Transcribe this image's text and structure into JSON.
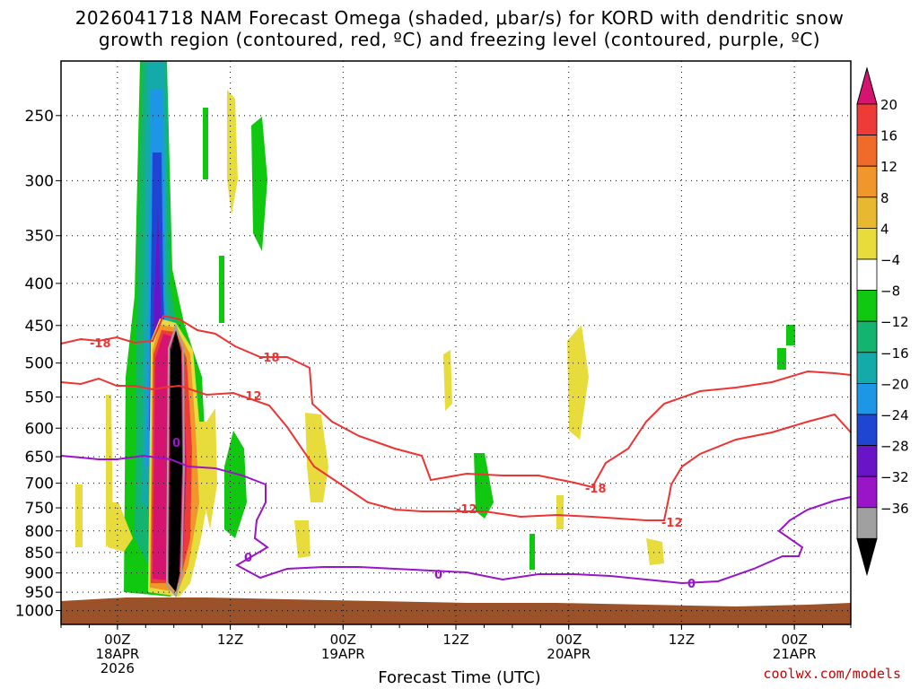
{
  "title": {
    "line1": "2026041718 NAM Forecast Omega (shaded, μbar/s) for KORD with dendritic snow",
    "line2": "growth region (contoured, red, ºC) and freezing level (contoured, purple, ºC)"
  },
  "credit": "coolwx.com/models",
  "chart_data": {
    "type": "time-height-section",
    "title": "2026041718 NAM Forecast Omega (shaded, μbar/s) for KORD with dendritic snow growth region (contoured, red, ºC) and freezing level (contoured, purple, ºC)",
    "xlabel": "Forecast Time (UTC)",
    "ylabel": "",
    "xlim_hours": [
      -6,
      78
    ],
    "ylim_hPa": [
      1050,
      200
    ],
    "grid": true,
    "y_ticks": [
      250,
      300,
      350,
      400,
      450,
      500,
      550,
      600,
      650,
      700,
      750,
      800,
      850,
      900,
      950,
      1000
    ],
    "x_ticks": [
      {
        "hour": 0,
        "line1": "00Z",
        "line2": "18APR",
        "line3": "2026"
      },
      {
        "hour": 12,
        "line1": "12Z",
        "line2": "",
        "line3": ""
      },
      {
        "hour": 24,
        "line1": "00Z",
        "line2": "19APR",
        "line3": ""
      },
      {
        "hour": 36,
        "line1": "12Z",
        "line2": "",
        "line3": ""
      },
      {
        "hour": 48,
        "line1": "00Z",
        "line2": "20APR",
        "line3": ""
      },
      {
        "hour": 60,
        "line1": "12Z",
        "line2": "",
        "line3": ""
      },
      {
        "hour": 72,
        "line1": "00Z",
        "line2": "21APR",
        "line3": ""
      }
    ],
    "colorbar": {
      "labels": [
        20,
        16,
        12,
        8,
        4,
        -4,
        -8,
        -12,
        -16,
        -20,
        -24,
        -28,
        -32,
        -36
      ],
      "colors": [
        "#d4146e",
        "#ef3b38",
        "#f06a2a",
        "#f0962a",
        "#e8b830",
        "#e8dc3c",
        "#ffffff",
        "#11c811",
        "#12b470",
        "#14aaaa",
        "#1e96e6",
        "#1e46d2",
        "#6a14c8",
        "#9a14c8",
        "#a0a0a0",
        "#000000"
      ]
    },
    "contours": {
      "red_isotherms": [
        {
          "label": "-18",
          "label_positions": [
            {
              "hour": -3,
              "p": 463
            },
            {
              "hour": 10.5,
              "p": 490
            },
            {
              "hour": 48.5,
              "p": 705
            }
          ]
        },
        {
          "label": "-12",
          "label_positions": [
            {
              "hour": 12.2,
              "p": 540
            },
            {
              "hour": 43,
              "p": 758
            },
            {
              "hour": 64.5,
              "p": 783
            }
          ]
        }
      ],
      "purple_freezing": {
        "label": "0",
        "label_positions": [
          {
            "hour": 6,
            "p": 640
          },
          {
            "hour": 14,
            "p": 870
          },
          {
            "hour": 37,
            "p": 910
          },
          {
            "hour": 62,
            "p": 930
          }
        ]
      }
    },
    "terrain_label": "surface (brown)"
  }
}
